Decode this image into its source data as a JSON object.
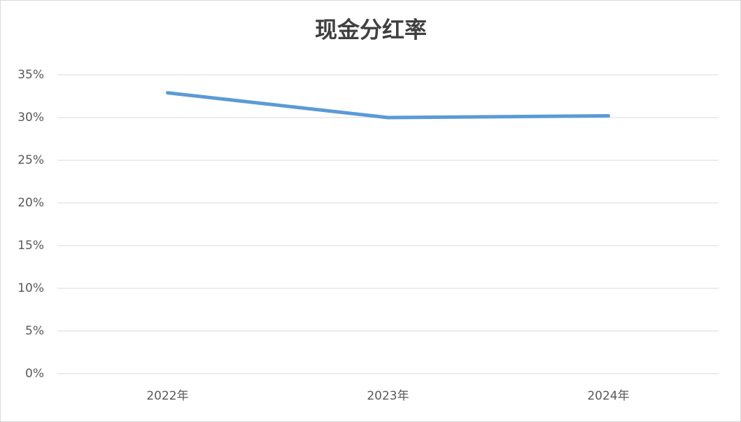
{
  "chart_data": {
    "type": "line",
    "title": "现金分红率",
    "categories": [
      "2022年",
      "2023年",
      "2024年"
    ],
    "series": [
      {
        "name": "现金分红率",
        "color": "#5b9bd5",
        "values": [
          32.9,
          30.0,
          30.2
        ]
      }
    ],
    "ylim": [
      0,
      35
    ],
    "yticks": [
      {
        "value": 0,
        "label": "0%"
      },
      {
        "value": 5,
        "label": "5%"
      },
      {
        "value": 10,
        "label": "10%"
      },
      {
        "value": 15,
        "label": "15%"
      },
      {
        "value": 20,
        "label": "20%"
      },
      {
        "value": 25,
        "label": "25%"
      },
      {
        "value": 30,
        "label": "30%"
      },
      {
        "value": 35,
        "label": "35%"
      }
    ],
    "grid": true
  }
}
